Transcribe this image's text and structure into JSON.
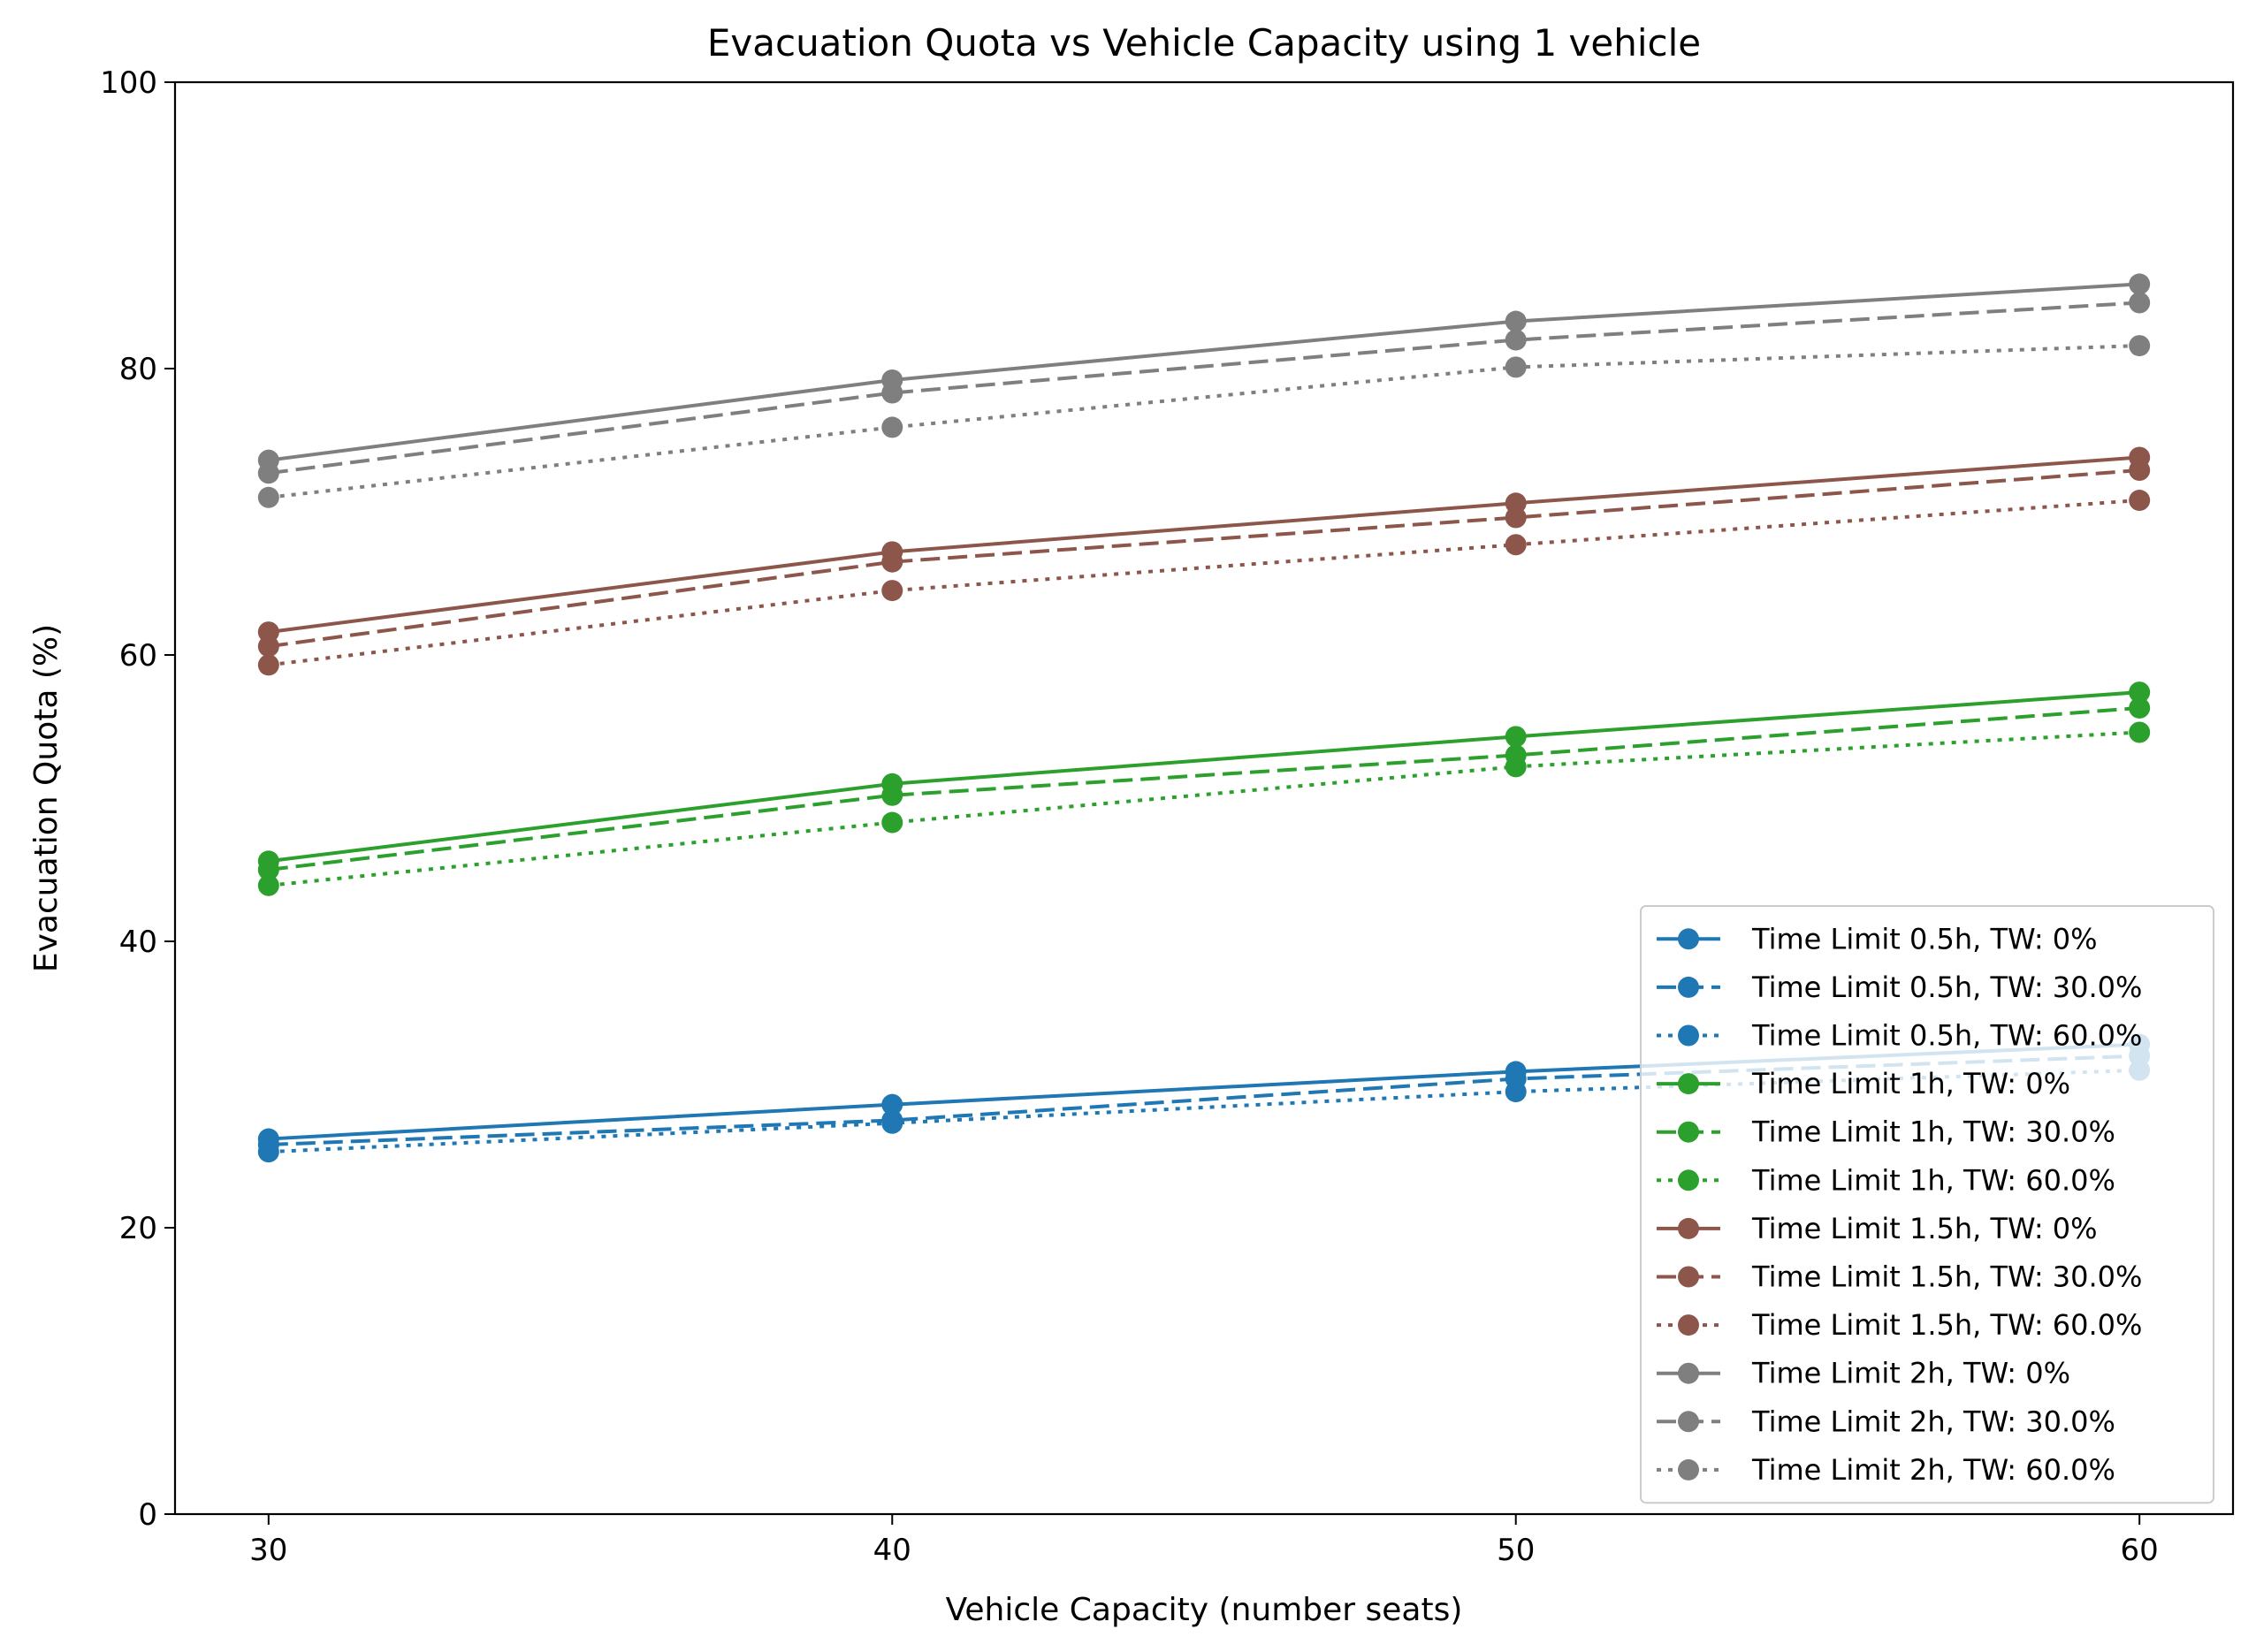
{
  "chart_data": {
    "type": "line",
    "title": "Evacuation Quota vs Vehicle Capacity using 1 vehicle",
    "xlabel": "Vehicle Capacity (number seats)",
    "ylabel": "Evacuation Quota (%)",
    "x": [
      30,
      40,
      50,
      60
    ],
    "xticks": [
      "30",
      "40",
      "50",
      "60"
    ],
    "xlim": [
      28.5,
      61.5
    ],
    "ylim": [
      0,
      100
    ],
    "yticks": [
      "0",
      "20",
      "40",
      "60",
      "80",
      "100"
    ],
    "grid": false,
    "legend_position": "lower-right",
    "series": [
      {
        "name": "Time Limit 0.5h, TW: 0%",
        "color": "#1f77b4",
        "style": "solid",
        "values": [
          26.2,
          28.6,
          30.9,
          32.8
        ]
      },
      {
        "name": "Time Limit 0.5h, TW: 30.0%",
        "color": "#1f77b4",
        "style": "dashed",
        "values": [
          25.8,
          27.5,
          30.4,
          32.0
        ]
      },
      {
        "name": "Time Limit 0.5h, TW: 60.0%",
        "color": "#1f77b4",
        "style": "dotted",
        "values": [
          25.3,
          27.3,
          29.5,
          31.0
        ]
      },
      {
        "name": "Time Limit 1h, TW: 0%",
        "color": "#2ca02c",
        "style": "solid",
        "values": [
          45.6,
          51.0,
          54.3,
          57.4
        ]
      },
      {
        "name": "Time Limit 1h, TW: 30.0%",
        "color": "#2ca02c",
        "style": "dashed",
        "values": [
          45.0,
          50.2,
          53.0,
          56.3
        ]
      },
      {
        "name": "Time Limit 1h, TW: 60.0%",
        "color": "#2ca02c",
        "style": "dotted",
        "values": [
          43.9,
          48.3,
          52.2,
          54.6
        ]
      },
      {
        "name": "Time Limit 1.5h, TW: 0%",
        "color": "#8c564b",
        "style": "solid",
        "values": [
          61.6,
          67.2,
          70.6,
          73.8
        ]
      },
      {
        "name": "Time Limit 1.5h, TW: 30.0%",
        "color": "#8c564b",
        "style": "dashed",
        "values": [
          60.6,
          66.5,
          69.6,
          72.9
        ]
      },
      {
        "name": "Time Limit 1.5h, TW: 60.0%",
        "color": "#8c564b",
        "style": "dotted",
        "values": [
          59.3,
          64.5,
          67.7,
          70.8
        ]
      },
      {
        "name": "Time Limit 2h, TW: 0%",
        "color": "#7f7f7f",
        "style": "solid",
        "values": [
          73.6,
          79.2,
          83.3,
          85.9
        ]
      },
      {
        "name": "Time Limit 2h, TW: 30.0%",
        "color": "#7f7f7f",
        "style": "dashed",
        "values": [
          72.7,
          78.3,
          82.0,
          84.6
        ]
      },
      {
        "name": "Time Limit 2h, TW: 60.0%",
        "color": "#7f7f7f",
        "style": "dotted",
        "values": [
          71.0,
          75.9,
          80.1,
          81.6
        ]
      }
    ]
  }
}
